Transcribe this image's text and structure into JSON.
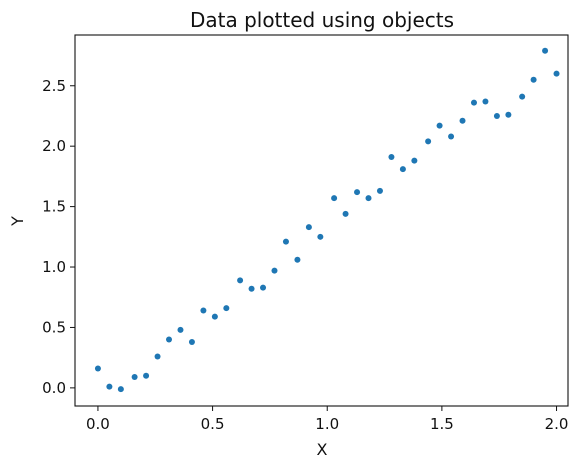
{
  "chart_data": {
    "type": "scatter",
    "title": "Data plotted using objects",
    "xlabel": "X",
    "ylabel": "Y",
    "xlim": [
      -0.1,
      2.05
    ],
    "ylim": [
      -0.15,
      2.92
    ],
    "xticks": [
      0.0,
      0.5,
      1.0,
      1.5,
      2.0
    ],
    "xtick_labels": [
      "0.0",
      "0.5",
      "1.0",
      "1.5",
      "2.0"
    ],
    "yticks": [
      0.0,
      0.5,
      1.0,
      1.5,
      2.0,
      2.5
    ],
    "ytick_labels": [
      "0.0",
      "0.5",
      "1.0",
      "1.5",
      "2.0",
      "2.5"
    ],
    "grid": false,
    "marker_color": "#1f77b4",
    "series": [
      {
        "x": [
          0.0,
          0.05,
          0.1,
          0.16,
          0.21,
          0.26,
          0.31,
          0.36,
          0.41,
          0.46,
          0.51,
          0.56,
          0.62,
          0.67,
          0.72,
          0.77,
          0.82,
          0.87,
          0.92,
          0.97,
          1.03,
          1.08,
          1.13,
          1.18,
          1.23,
          1.28,
          1.33,
          1.38,
          1.44,
          1.49,
          1.54,
          1.59,
          1.64,
          1.69,
          1.74,
          1.79,
          1.85,
          1.9,
          1.95,
          2.0
        ],
        "y": [
          0.16,
          0.01,
          -0.01,
          0.09,
          0.1,
          0.26,
          0.4,
          0.48,
          0.38,
          0.64,
          0.59,
          0.66,
          0.89,
          0.82,
          0.83,
          0.97,
          1.21,
          1.06,
          1.33,
          1.25,
          1.57,
          1.44,
          1.62,
          1.57,
          1.63,
          1.91,
          1.81,
          1.88,
          2.04,
          2.17,
          2.08,
          2.21,
          2.36,
          2.37,
          2.25,
          2.26,
          2.41,
          2.55,
          2.79,
          2.6
        ]
      }
    ]
  }
}
